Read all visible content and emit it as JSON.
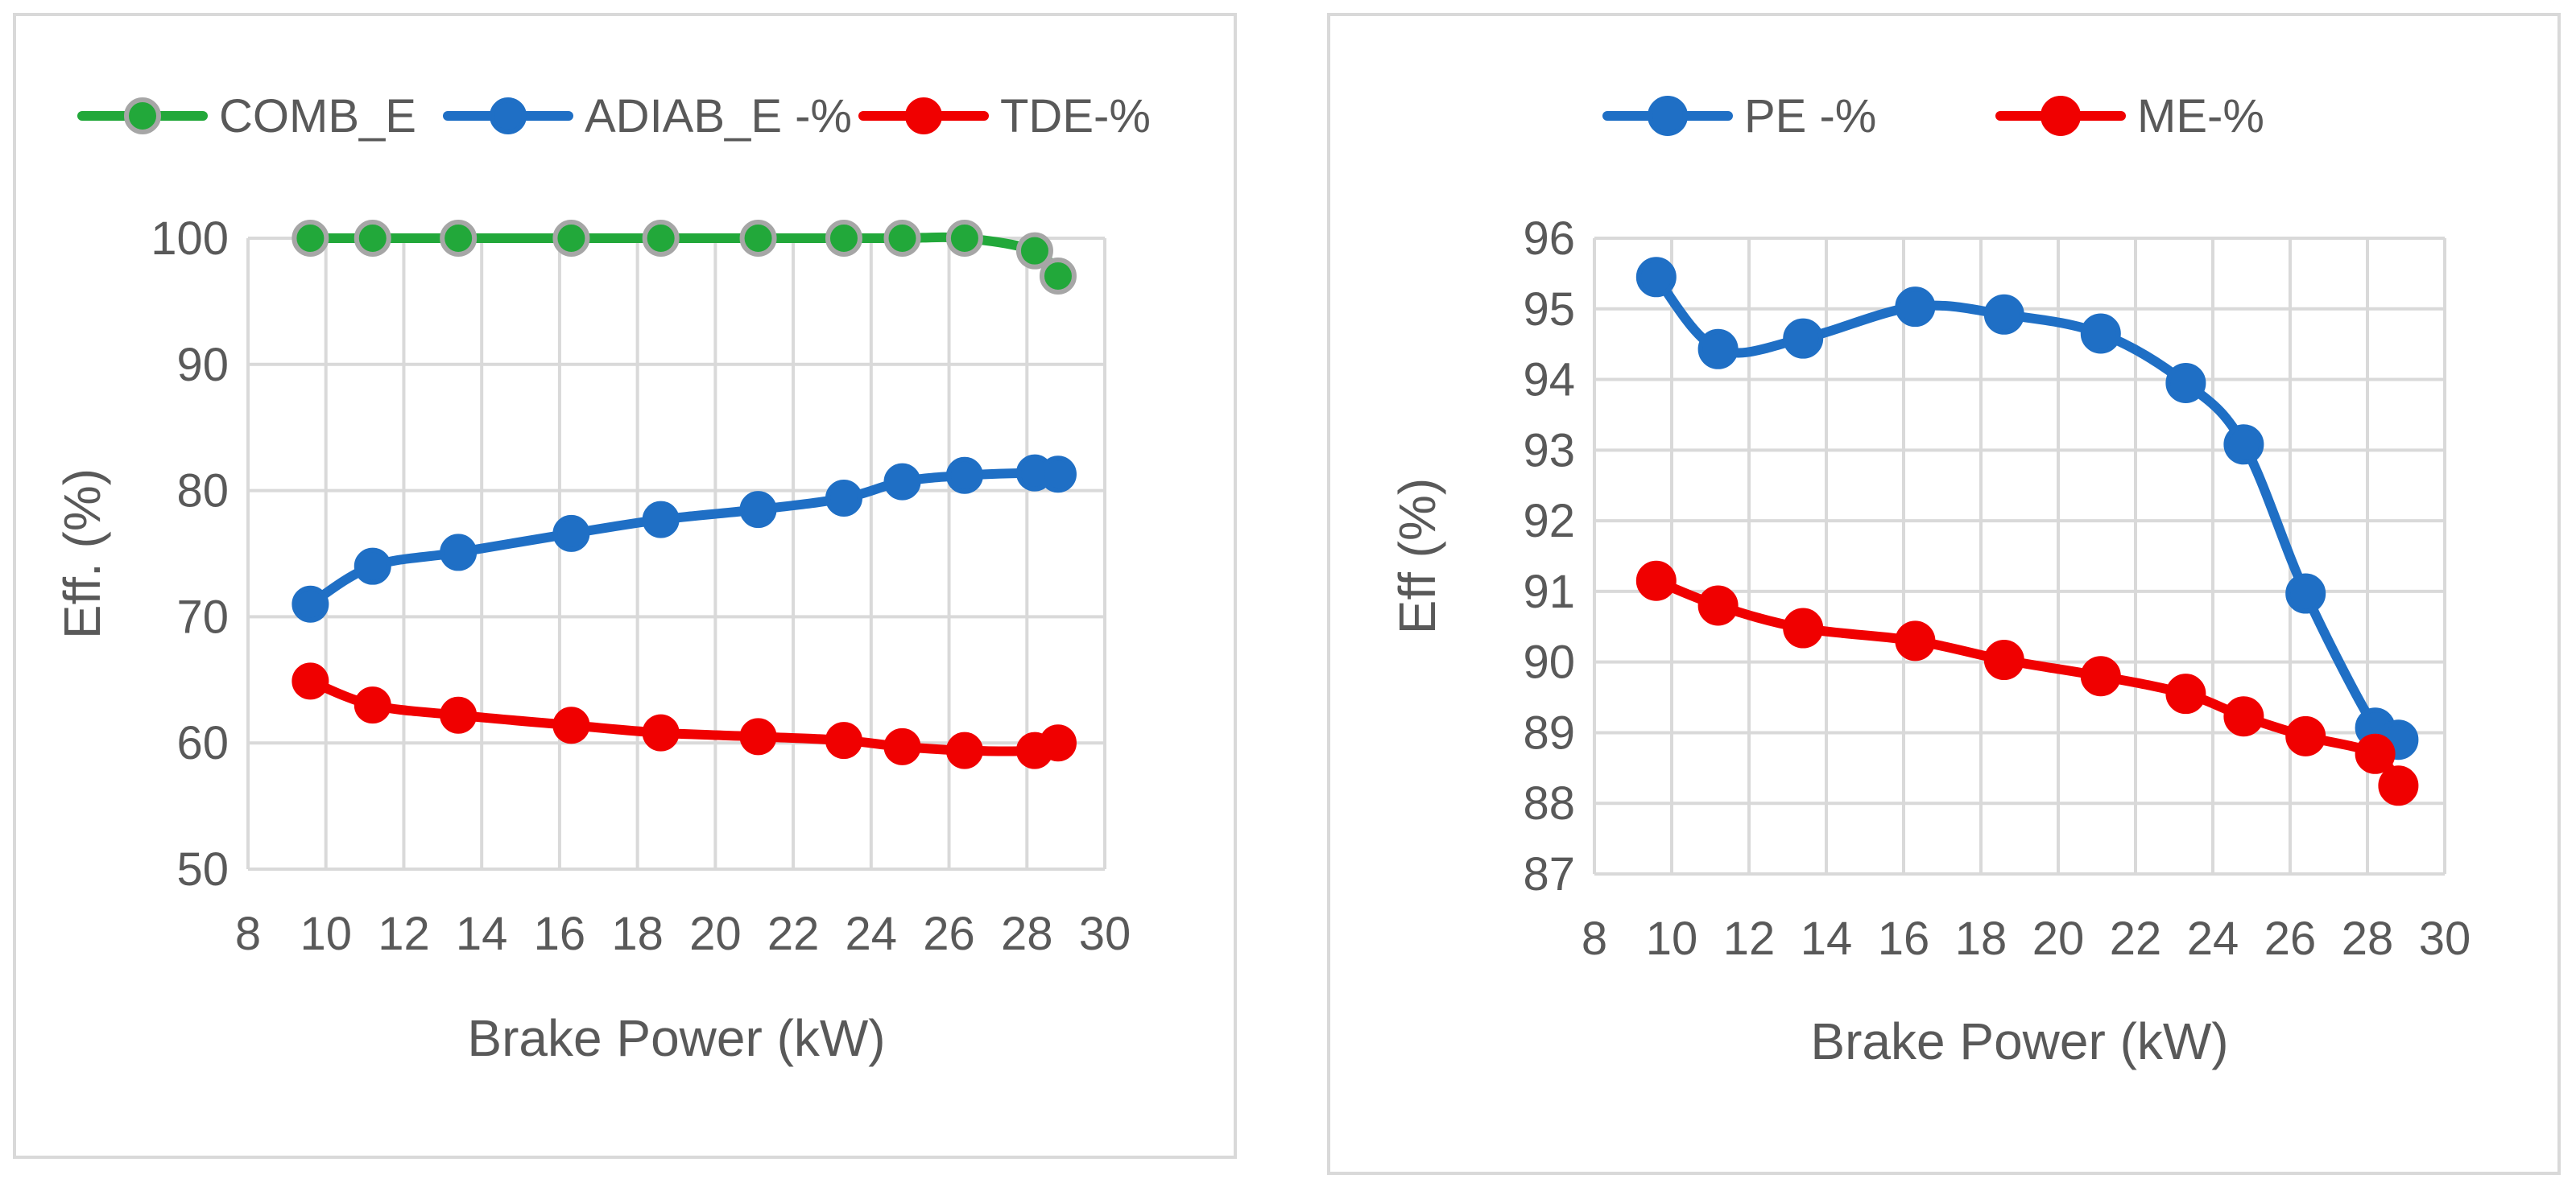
{
  "chart_data": [
    {
      "type": "line",
      "title": "",
      "xlabel": "Brake Power (kW)",
      "ylabel": "Eff. (%)",
      "xlim": [
        8,
        30
      ],
      "ylim": [
        50,
        100
      ],
      "xticks": [
        "8",
        "10",
        "12",
        "14",
        "16",
        "18",
        "20",
        "22",
        "24",
        "26",
        "28",
        "30"
      ],
      "yticks": [
        "50",
        "60",
        "70",
        "80",
        "90",
        "100"
      ],
      "grid": true,
      "legend": "top",
      "series": [
        {
          "name": "COMB_E",
          "color": "#22a83a",
          "marker_fill": "#22a83a",
          "marker_stroke": "#a6a6a6",
          "x": [
            9.6,
            11.2,
            13.4,
            16.3,
            18.6,
            21.1,
            23.3,
            24.8,
            26.4,
            28.2,
            28.8
          ],
          "y": [
            100,
            100,
            100,
            100,
            100,
            100,
            100,
            100,
            100,
            99,
            97
          ]
        },
        {
          "name": "ADIAB_E -%",
          "color": "#1f6fc5",
          "marker_fill": "#1f6fc5",
          "marker_stroke": "#1f6fc5",
          "x": [
            9.6,
            11.2,
            13.4,
            16.3,
            18.6,
            21.1,
            23.3,
            24.8,
            26.4,
            28.2,
            28.8
          ],
          "y": [
            71,
            74,
            75.1,
            76.6,
            77.7,
            78.5,
            79.4,
            80.7,
            81.2,
            81.4,
            81.3
          ]
        },
        {
          "name": "TDE-%",
          "color": "#f00000",
          "marker_fill": "#f00000",
          "marker_stroke": "#f00000",
          "x": [
            9.6,
            11.2,
            13.4,
            16.3,
            18.6,
            21.1,
            23.3,
            24.8,
            26.4,
            28.2,
            28.8
          ],
          "y": [
            64.9,
            63,
            62.2,
            61.4,
            60.8,
            60.5,
            60.2,
            59.7,
            59.4,
            59.4,
            60
          ]
        }
      ]
    },
    {
      "type": "line",
      "title": "",
      "xlabel": "Brake Power (kW)",
      "ylabel": "Eff (%)",
      "xlim": [
        8,
        30
      ],
      "ylim": [
        87,
        96
      ],
      "xticks": [
        "8",
        "10",
        "12",
        "14",
        "16",
        "18",
        "20",
        "22",
        "24",
        "26",
        "28",
        "30"
      ],
      "yticks": [
        "87",
        "88",
        "89",
        "90",
        "91",
        "92",
        "93",
        "94",
        "95",
        "96"
      ],
      "grid": true,
      "legend": "top",
      "series": [
        {
          "name": "PE -%",
          "color": "#1f6fc5",
          "marker_fill": "#1f6fc5",
          "marker_stroke": "#1f6fc5",
          "x": [
            9.6,
            11.2,
            13.4,
            16.3,
            18.6,
            21.1,
            23.3,
            24.8,
            26.4,
            28.2,
            28.8
          ],
          "y": [
            95.45,
            94.43,
            94.58,
            95.03,
            94.92,
            94.65,
            93.95,
            93.08,
            90.97,
            89.07,
            88.9
          ]
        },
        {
          "name": "ME-%",
          "color": "#f00000",
          "marker_fill": "#f00000",
          "marker_stroke": "#f00000",
          "x": [
            9.6,
            11.2,
            13.4,
            16.3,
            18.6,
            21.1,
            23.3,
            24.8,
            26.4,
            28.2,
            28.8
          ],
          "y": [
            91.15,
            90.8,
            90.48,
            90.3,
            90.03,
            89.8,
            89.55,
            89.23,
            88.95,
            88.7,
            88.25
          ]
        }
      ]
    }
  ]
}
